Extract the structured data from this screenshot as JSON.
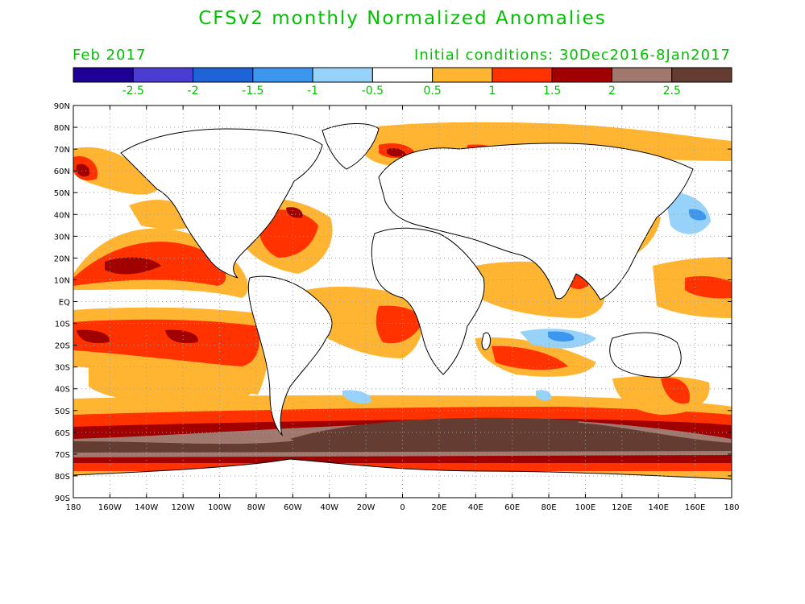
{
  "header": {
    "title": "CFSv2 monthly Normalized Anomalies",
    "month": "Feb 2017",
    "initial_conditions": "Initial conditions: 30Dec2016-8Jan2017"
  },
  "colors": {
    "text_green": "#00c000",
    "frame": "#000000",
    "land_outline": "#000000"
  },
  "colorbar": {
    "bins": [
      {
        "color": "#1e0096"
      },
      {
        "color": "#4b3cd2"
      },
      {
        "color": "#1e64d7"
      },
      {
        "color": "#3c96ee"
      },
      {
        "color": "#96d2fa"
      },
      {
        "color": "#ffffff"
      },
      {
        "color": "#ffb432"
      },
      {
        "color": "#ff3200"
      },
      {
        "color": "#a00000"
      },
      {
        "color": "#a0786e"
      },
      {
        "color": "#643c32"
      }
    ],
    "labels": [
      "-2.5",
      "-2",
      "-1.5",
      "-1",
      "-0.5",
      "0.5",
      "1",
      "1.5",
      "2",
      "2.5"
    ]
  },
  "axes": {
    "lat_labels": [
      "90N",
      "80N",
      "70N",
      "60N",
      "50N",
      "40N",
      "30N",
      "20N",
      "10N",
      "EQ",
      "10S",
      "20S",
      "30S",
      "40S",
      "50S",
      "60S",
      "70S",
      "80S",
      "90S"
    ],
    "lon_labels": [
      "180",
      "160W",
      "140W",
      "120W",
      "100W",
      "80W",
      "60W",
      "40W",
      "20W",
      "0",
      "20E",
      "40E",
      "60E",
      "80E",
      "100E",
      "120E",
      "140E",
      "160E",
      "180"
    ]
  }
}
